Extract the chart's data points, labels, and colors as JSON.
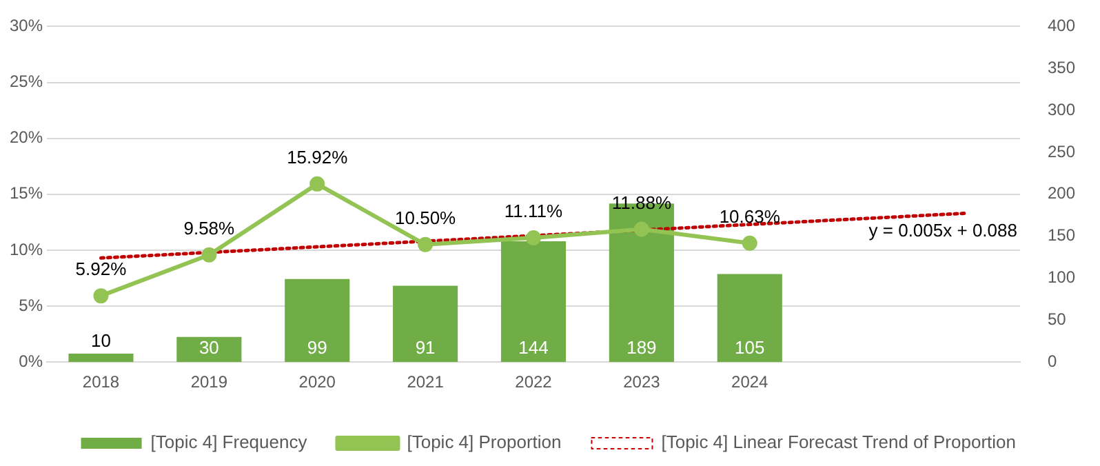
{
  "chart_data": {
    "type": "bar",
    "categories": [
      "2018",
      "2019",
      "2020",
      "2021",
      "2022",
      "2023",
      "2024",
      null,
      null
    ],
    "series": [
      {
        "name": "[Topic 4] Frequency",
        "axis": "y2",
        "color": "#70ad47",
        "values": [
          10,
          30,
          99,
          91,
          144,
          189,
          105,
          null,
          null
        ],
        "value_labels": [
          "10",
          "30",
          "99",
          "91",
          "144",
          "189",
          "105",
          null,
          null
        ]
      },
      {
        "name": "[Topic 4] Proportion",
        "type": "line",
        "axis": "y",
        "color": "#92c353",
        "marker": "circle",
        "line_style": "solid",
        "values": [
          5.92,
          9.58,
          15.92,
          10.5,
          11.11,
          11.88,
          10.63,
          null,
          null
        ],
        "value_labels": [
          "5.92%",
          "9.58%",
          "15.92%",
          "10.50%",
          "11.11%",
          "11.88%",
          "10.63%",
          null,
          null
        ]
      },
      {
        "name": "[Topic 4] Linear Forecast Trend of Proportion",
        "type": "line",
        "axis": "y",
        "color": "#c00000",
        "marker": "none",
        "line_style": "dotted",
        "values": [
          9.3,
          9.8,
          10.3,
          10.8,
          11.3,
          11.8,
          12.3,
          12.8,
          13.3
        ]
      }
    ],
    "ylim": [
      0,
      30
    ],
    "yticks": [
      {
        "value": 0,
        "label": "0%"
      },
      {
        "value": 5,
        "label": "5%"
      },
      {
        "value": 10,
        "label": "10%"
      },
      {
        "value": 15,
        "label": "15%"
      },
      {
        "value": 20,
        "label": "20%"
      },
      {
        "value": 25,
        "label": "25%"
      },
      {
        "value": 30,
        "label": "30%"
      }
    ],
    "y2lim": [
      0,
      400
    ],
    "y2ticks": [
      0,
      50,
      100,
      150,
      200,
      250,
      300,
      350,
      400
    ],
    "annotations": [
      "y = 0.005x + 0.088"
    ],
    "grid": "y",
    "legend": "bottom"
  }
}
